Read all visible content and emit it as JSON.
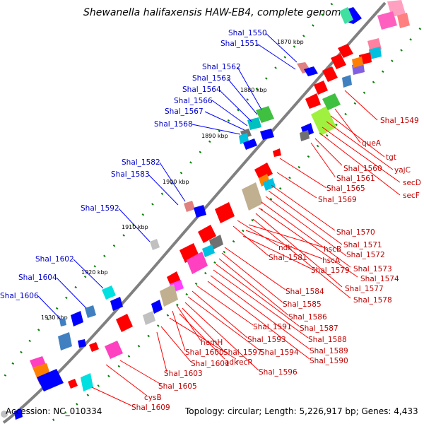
{
  "title": "Shewanella halifaxensis HAW-EB4, complete genome",
  "accession": "Accession: NC_010334",
  "topology": "Topology: circular; Length: 5,226,917 bp; Genes: 4,433",
  "kbp_ticks": [
    "1870 kbp",
    "1880 kbp",
    "1890 kbp",
    "1900 kbp",
    "1910 kbp",
    "1920 kbp",
    "1930 kbp"
  ],
  "labels_left": [
    "Shal_1550",
    "Shal_1551",
    "Shal_1562",
    "Shal_1563",
    "Shal_1564",
    "Shal_1566",
    "Shal_1567",
    "Shal_1568",
    "Shal_1582",
    "Shal_1583",
    "Shal_1592",
    "Shal_1602",
    "Shal_1604",
    "Shal_1606"
  ],
  "labels_right": [
    "Shal_1549",
    "queA",
    "tgt",
    "yajC",
    "secD",
    "secF",
    "Shal_1560",
    "Shal_1561",
    "Shal_1565",
    "Shal_1569",
    "Shal_1570",
    "Shal_1571",
    "Shal_1572",
    "Shal_1573",
    "Shal_1574",
    "Shal_1577",
    "Shal_1578",
    "ndk",
    "Shal_1581",
    "hscB",
    "hscA",
    "Shal_1579",
    "Shal_1584",
    "Shal_1585",
    "Shal_1586",
    "Shal_1587",
    "Shal_1588",
    "Shal_1589",
    "Shal_1590",
    "Shal_1591",
    "Shal_1593",
    "Shal_1594",
    "Shal_1596",
    "hemH",
    "Shal_1600",
    "Shal_1597",
    "adk",
    "recR",
    "Shal_1601",
    "Shal_1603",
    "Shal_1605",
    "cysB",
    "Shal_1609"
  ],
  "colors": {
    "forward": "#0000ff",
    "reverse": "#ff0000",
    "backbone": "#808080",
    "tick": "#008000"
  }
}
